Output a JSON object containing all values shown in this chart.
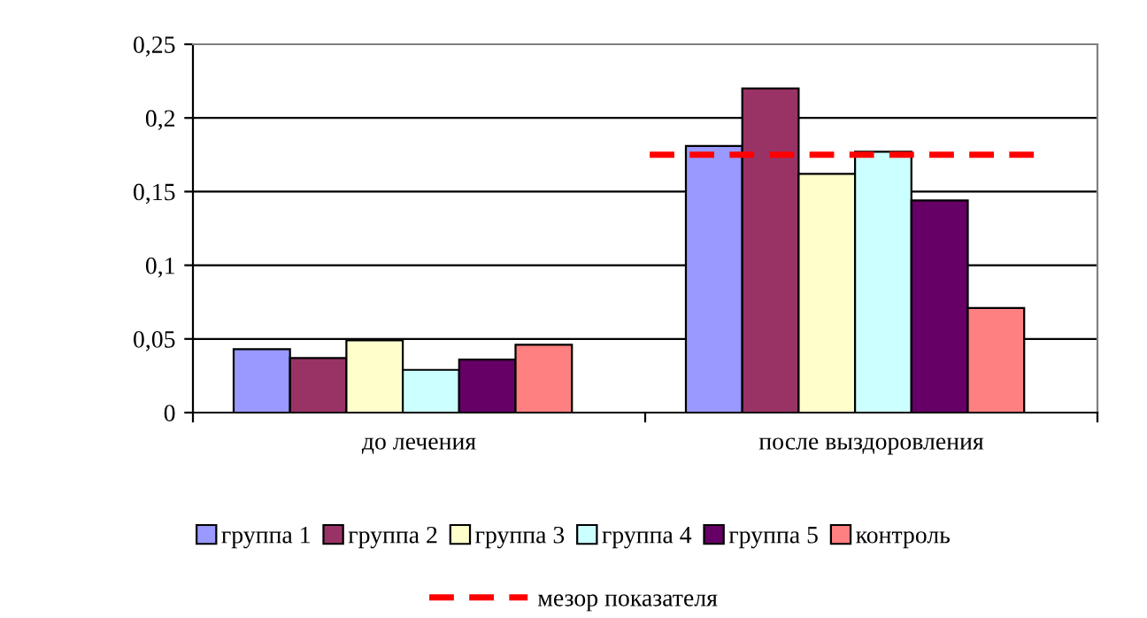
{
  "chart_data": {
    "type": "bar",
    "categories": [
      "до лечения",
      "после выздоровления"
    ],
    "series": [
      {
        "name": "группа 1",
        "color": "#9999ff",
        "values": [
          0.043,
          0.181
        ]
      },
      {
        "name": "группа 2",
        "color": "#993366",
        "values": [
          0.037,
          0.22
        ]
      },
      {
        "name": "группа 3",
        "color": "#ffffcc",
        "values": [
          0.049,
          0.162
        ]
      },
      {
        "name": "группа 4",
        "color": "#ccffff",
        "values": [
          0.029,
          0.177
        ]
      },
      {
        "name": "группа 5",
        "color": "#660066",
        "values": [
          0.036,
          0.144
        ]
      },
      {
        "name": "контроль",
        "color": "#ff8080",
        "values": [
          0.046,
          0.071
        ]
      }
    ],
    "ylim": [
      0,
      0.25
    ],
    "yticks": [
      {
        "value": 0,
        "label": "0"
      },
      {
        "value": 0.05,
        "label": "0,05"
      },
      {
        "value": 0.1,
        "label": "0,1"
      },
      {
        "value": 0.15,
        "label": "0,15"
      },
      {
        "value": 0.2,
        "label": "0,2"
      },
      {
        "value": 0.25,
        "label": "0,25"
      }
    ],
    "ref_lines": [
      {
        "axis": "y",
        "value": 0.175,
        "label": "мезор показателя",
        "color": "#ff0000",
        "line_style": "dashed"
      }
    ],
    "grid": "y",
    "legend": "bottom"
  }
}
